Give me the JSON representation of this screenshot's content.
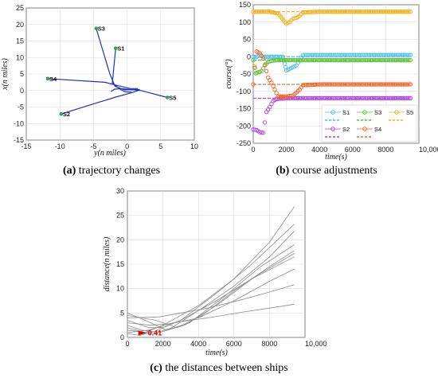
{
  "chart_data": [
    {
      "type": "line",
      "panel": "a",
      "caption_letter": "(a)",
      "caption_text": " trajectory changes",
      "xlabel": "y(n miles)",
      "ylabel": "x(n miles)",
      "xlim": [
        -15,
        10
      ],
      "ylim": [
        -15,
        25
      ],
      "xticks": [
        -15,
        -10,
        -5,
        0,
        5,
        10
      ],
      "yticks": [
        -15,
        -10,
        -5,
        0,
        5,
        10,
        15,
        20,
        25
      ],
      "grid": true,
      "ships": [
        {
          "name": "S3",
          "y": -4.6,
          "x": 18.8
        },
        {
          "name": "S1",
          "y": -1.7,
          "x": 12.8
        },
        {
          "name": "S4",
          "y": -11.8,
          "x": 3.6
        },
        {
          "name": "S5",
          "y": 6.0,
          "x": -2.1
        },
        {
          "name": "S2",
          "y": -9.8,
          "x": -7.1
        }
      ],
      "trajectories": [
        {
          "ship": "S3",
          "points": [
            [
              -4.6,
              18.8
            ],
            [
              -2.6,
              5.2
            ],
            [
              -1.8,
              1.3
            ],
            [
              -0.4,
              0.2
            ],
            [
              1.9,
              0.3
            ]
          ]
        },
        {
          "ship": "S1",
          "points": [
            [
              -1.7,
              12.8
            ],
            [
              -2.2,
              2.2
            ],
            [
              -0.9,
              0.2
            ],
            [
              -0.3,
              -0.4
            ],
            [
              0.7,
              -0.5
            ]
          ]
        },
        {
          "ship": "S4",
          "points": [
            [
              -11.8,
              3.6
            ],
            [
              -3.3,
              2.5
            ],
            [
              -1.2,
              1.4
            ],
            [
              0.5,
              0.6
            ],
            [
              1.6,
              0.6
            ]
          ]
        },
        {
          "ship": "S5",
          "points": [
            [
              6.0,
              -2.1
            ],
            [
              2.1,
              0.0
            ],
            [
              -0.9,
              0.6
            ],
            [
              -1.9,
              0.4
            ],
            [
              -2.4,
              -0.3
            ]
          ]
        },
        {
          "ship": "S2",
          "points": [
            [
              -9.8,
              -7.1
            ],
            [
              -4.9,
              -4.0
            ],
            [
              -1.7,
              -2.0
            ],
            [
              0.8,
              -0.6
            ],
            [
              1.8,
              0.1
            ]
          ]
        }
      ]
    },
    {
      "type": "scatter",
      "panel": "b",
      "caption_letter": "(b)",
      "caption_text": " course adjustments",
      "xlabel": "time(s)",
      "ylabel": "course(°)",
      "xlim": [
        0,
        10000
      ],
      "ylim": [
        -250,
        150
      ],
      "xticks": [
        0,
        2000,
        4000,
        6000,
        8000,
        10000
      ],
      "xtick_labels": [
        "0",
        "2000",
        "4000",
        "6000",
        "8000",
        "10,000"
      ],
      "yticks": [
        -250,
        -200,
        -150,
        -100,
        -50,
        0,
        50,
        100,
        150
      ],
      "grid": true,
      "legend_position": "bottom-right",
      "series": [
        {
          "name": "S1",
          "color": "#4dbeee",
          "planned": 0,
          "points": [
            [
              0,
              0
            ],
            [
              200,
              0
            ],
            [
              400,
              5
            ],
            [
              600,
              0
            ],
            [
              1000,
              0
            ],
            [
              1400,
              0
            ],
            [
              1800,
              0
            ],
            [
              1900,
              -20
            ],
            [
              2000,
              -40
            ],
            [
              2200,
              -35
            ],
            [
              2400,
              -30
            ],
            [
              2600,
              -25
            ],
            [
              2800,
              -10
            ],
            [
              3000,
              5
            ],
            [
              4000,
              5
            ],
            [
              6000,
              5
            ],
            [
              8000,
              5
            ],
            [
              9500,
              5
            ]
          ]
        },
        {
          "name": "S2",
          "color": "#b041e8",
          "planned": -120,
          "points": [
            [
              0,
              -210
            ],
            [
              200,
              -212
            ],
            [
              400,
              -218
            ],
            [
              600,
              -220
            ],
            [
              800,
              -160
            ],
            [
              1000,
              -145
            ],
            [
              1200,
              -128
            ],
            [
              1400,
              -122
            ],
            [
              2000,
              -120
            ],
            [
              4000,
              -120
            ],
            [
              6000,
              -120
            ],
            [
              8000,
              -120
            ],
            [
              9500,
              -120
            ]
          ]
        },
        {
          "name": "S3",
          "color": "#59c233",
          "planned": -10,
          "points": [
            [
              0,
              -10
            ],
            [
              150,
              -48
            ],
            [
              300,
              -45
            ],
            [
              500,
              -42
            ],
            [
              700,
              -25
            ],
            [
              900,
              -15
            ],
            [
              1100,
              -12
            ],
            [
              1400,
              -10
            ],
            [
              2000,
              -10
            ],
            [
              4000,
              -10
            ],
            [
              6000,
              -10
            ],
            [
              8000,
              -10
            ],
            [
              9500,
              -10
            ]
          ]
        },
        {
          "name": "S4",
          "color": "#f26322",
          "planned": -80,
          "points": [
            [
              0,
              -80
            ],
            [
              200,
              15
            ],
            [
              400,
              10
            ],
            [
              600,
              -5
            ],
            [
              900,
              -60
            ],
            [
              1100,
              -75
            ],
            [
              1500,
              -115
            ],
            [
              2000,
              -115
            ],
            [
              2400,
              -112
            ],
            [
              2800,
              -95
            ],
            [
              3000,
              -82
            ],
            [
              4000,
              -80
            ],
            [
              6000,
              -80
            ],
            [
              8000,
              -80
            ],
            [
              9500,
              -80
            ]
          ]
        },
        {
          "name": "S5",
          "color": "#f0b01e",
          "planned": 130,
          "points": [
            [
              0,
              130
            ],
            [
              1000,
              130
            ],
            [
              1500,
              125
            ],
            [
              2000,
              95
            ],
            [
              2200,
              100
            ],
            [
              2400,
              110
            ],
            [
              2600,
              112
            ],
            [
              2800,
              118
            ],
            [
              3000,
              128
            ],
            [
              4000,
              130
            ],
            [
              6000,
              130
            ],
            [
              8000,
              130
            ],
            [
              9500,
              130
            ]
          ]
        }
      ]
    },
    {
      "type": "line",
      "panel": "c",
      "caption_letter": "(c)",
      "caption_text": " the distances between ships",
      "xlabel": "time(s)",
      "ylabel": "distance(n miles)",
      "xlim": [
        0,
        10000
      ],
      "ylim": [
        0,
        30
      ],
      "xticks": [
        0,
        2000,
        4000,
        6000,
        8000,
        10000
      ],
      "xtick_labels": [
        "0",
        "2000",
        "4000",
        "6000",
        "8000",
        "10,000"
      ],
      "yticks": [
        0,
        5,
        10,
        15,
        20,
        25,
        30
      ],
      "grid": true,
      "annotation": {
        "text": "0.41",
        "x": 700,
        "y": 0.41,
        "color": "#e00000"
      },
      "series": [
        {
          "values": [
            [
              0,
              2.0
            ],
            [
              1000,
              1.0
            ],
            [
              2000,
              2.5
            ],
            [
              4000,
              6.5
            ],
            [
              6000,
              12.0
            ],
            [
              8000,
              19.5
            ],
            [
              9400,
              26.8
            ]
          ]
        },
        {
          "values": [
            [
              0,
              3.5
            ],
            [
              1200,
              2.0
            ],
            [
              2000,
              2.0
            ],
            [
              3000,
              3.5
            ],
            [
              5000,
              9.0
            ],
            [
              7000,
              15.0
            ],
            [
              9400,
              23.2
            ]
          ]
        },
        {
          "values": [
            [
              0,
              1.5
            ],
            [
              1500,
              0.8
            ],
            [
              2500,
              2.0
            ],
            [
              4000,
              5.5
            ],
            [
              6000,
              10.5
            ],
            [
              8000,
              16.5
            ],
            [
              9400,
              21.8
            ]
          ]
        },
        {
          "values": [
            [
              0,
              5.0
            ],
            [
              1000,
              3.5
            ],
            [
              2200,
              1.5
            ],
            [
              3500,
              3.0
            ],
            [
              5500,
              8.5
            ],
            [
              7500,
              14.5
            ],
            [
              9400,
              19.0
            ]
          ]
        },
        {
          "values": [
            [
              0,
              4.5
            ],
            [
              1600,
              3.5
            ],
            [
              2800,
              2.0
            ],
            [
              4200,
              4.5
            ],
            [
              6000,
              9.5
            ],
            [
              8000,
              14.5
            ],
            [
              9400,
              17.8
            ]
          ]
        },
        {
          "values": [
            [
              0,
              2.5
            ],
            [
              800,
              1.5
            ],
            [
              1800,
              1.0
            ],
            [
              3200,
              2.5
            ],
            [
              5000,
              6.5
            ],
            [
              7200,
              12.5
            ],
            [
              9400,
              17.2
            ]
          ]
        },
        {
          "values": [
            [
              0,
              0.8
            ],
            [
              700,
              0.41
            ],
            [
              1500,
              1.2
            ],
            [
              3000,
              3.5
            ],
            [
              5000,
              7.5
            ],
            [
              7000,
              12.0
            ],
            [
              9400,
              16.5
            ]
          ]
        },
        {
          "values": [
            [
              0,
              3.0
            ],
            [
              1300,
              2.5
            ],
            [
              2400,
              2.8
            ],
            [
              4000,
              4.0
            ],
            [
              6000,
              7.5
            ],
            [
              8000,
              11.5
            ],
            [
              9400,
              14.0
            ]
          ]
        },
        {
          "values": [
            [
              0,
              4.0
            ],
            [
              1800,
              4.2
            ],
            [
              3000,
              5.0
            ],
            [
              4500,
              6.0
            ],
            [
              6500,
              7.8
            ],
            [
              8000,
              9.3
            ],
            [
              9400,
              10.8
            ]
          ]
        },
        {
          "values": [
            [
              0,
              1.0
            ],
            [
              1200,
              1.5
            ],
            [
              2600,
              3.0
            ],
            [
              4500,
              4.0
            ],
            [
              6500,
              5.2
            ],
            [
              8000,
              6.0
            ],
            [
              9400,
              6.8
            ]
          ]
        }
      ]
    }
  ]
}
